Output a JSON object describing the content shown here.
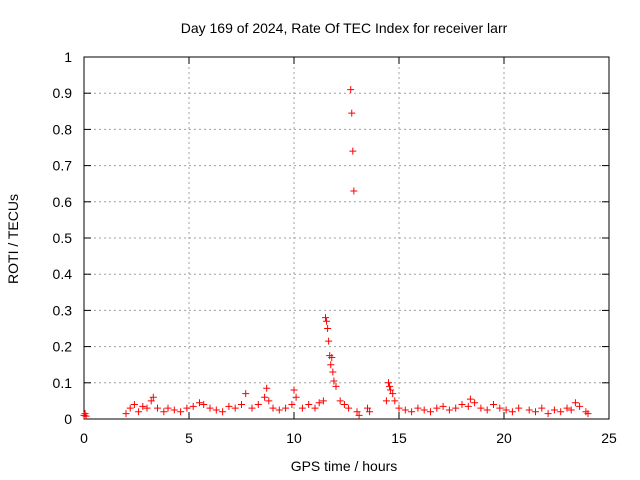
{
  "chart_data": {
    "type": "scatter",
    "title": "Day 169 of 2024, Rate Of TEC Index for receiver larr",
    "xlabel": "GPS time / hours",
    "ylabel": "ROTI / TECUs",
    "xlim": [
      0,
      25
    ],
    "ylim": [
      0,
      1
    ],
    "x_ticks": [
      "0",
      "5",
      "10",
      "15",
      "20",
      "25"
    ],
    "y_ticks": [
      "0",
      "0.1",
      "0.2",
      "0.3",
      "0.4",
      "0.5",
      "0.6",
      "0.7",
      "0.8",
      "0.9",
      "1"
    ],
    "grid": true,
    "legend": "none",
    "marker": "plus",
    "color": "#ff0000",
    "series": [
      {
        "x": [
          0.0,
          0.05,
          0.1,
          2.0,
          2.2,
          2.4,
          2.6,
          2.8,
          3.0,
          3.2,
          3.3,
          3.5,
          3.8,
          4.0,
          4.3,
          4.6,
          4.9,
          5.2,
          5.5,
          5.7,
          6.0,
          6.3,
          6.6,
          6.9,
          7.2,
          7.5,
          7.7,
          8.0,
          8.3,
          8.6,
          8.7,
          8.8,
          9.0,
          9.3,
          9.6,
          9.9,
          10.0,
          10.1,
          10.4,
          10.7,
          11.0,
          11.2,
          11.4,
          11.5,
          11.55,
          11.6,
          11.65,
          11.7,
          11.75,
          11.8,
          11.85,
          11.9,
          12.0,
          12.2,
          12.4,
          12.6,
          12.7,
          12.75,
          12.8,
          12.85,
          13.0,
          13.1,
          13.5,
          13.6,
          14.4,
          14.5,
          14.55,
          14.6,
          14.7,
          14.8,
          15.0,
          15.3,
          15.6,
          15.9,
          16.2,
          16.5,
          16.8,
          17.1,
          17.4,
          17.7,
          18.0,
          18.3,
          18.4,
          18.6,
          18.9,
          19.2,
          19.5,
          19.8,
          20.1,
          20.4,
          20.7,
          21.2,
          21.5,
          21.8,
          22.1,
          22.4,
          22.7,
          23.0,
          23.2,
          23.4,
          23.6,
          23.9,
          24.0
        ],
        "y": [
          0.01,
          0.015,
          0.008,
          0.015,
          0.03,
          0.04,
          0.02,
          0.035,
          0.03,
          0.05,
          0.06,
          0.03,
          0.02,
          0.03,
          0.025,
          0.02,
          0.03,
          0.035,
          0.045,
          0.04,
          0.03,
          0.025,
          0.02,
          0.035,
          0.03,
          0.04,
          0.07,
          0.03,
          0.04,
          0.06,
          0.085,
          0.05,
          0.03,
          0.025,
          0.03,
          0.04,
          0.08,
          0.06,
          0.03,
          0.04,
          0.03,
          0.045,
          0.05,
          0.28,
          0.27,
          0.25,
          0.215,
          0.175,
          0.15,
          0.17,
          0.13,
          0.105,
          0.09,
          0.05,
          0.04,
          0.03,
          0.91,
          0.845,
          0.74,
          0.63,
          0.02,
          0.01,
          0.03,
          0.02,
          0.05,
          0.1,
          0.09,
          0.08,
          0.07,
          0.05,
          0.03,
          0.025,
          0.02,
          0.03,
          0.025,
          0.02,
          0.03,
          0.035,
          0.025,
          0.03,
          0.04,
          0.035,
          0.055,
          0.045,
          0.03,
          0.025,
          0.04,
          0.03,
          0.025,
          0.02,
          0.03,
          0.025,
          0.02,
          0.03,
          0.015,
          0.025,
          0.02,
          0.03,
          0.025,
          0.045,
          0.035,
          0.02,
          0.015
        ]
      }
    ]
  }
}
